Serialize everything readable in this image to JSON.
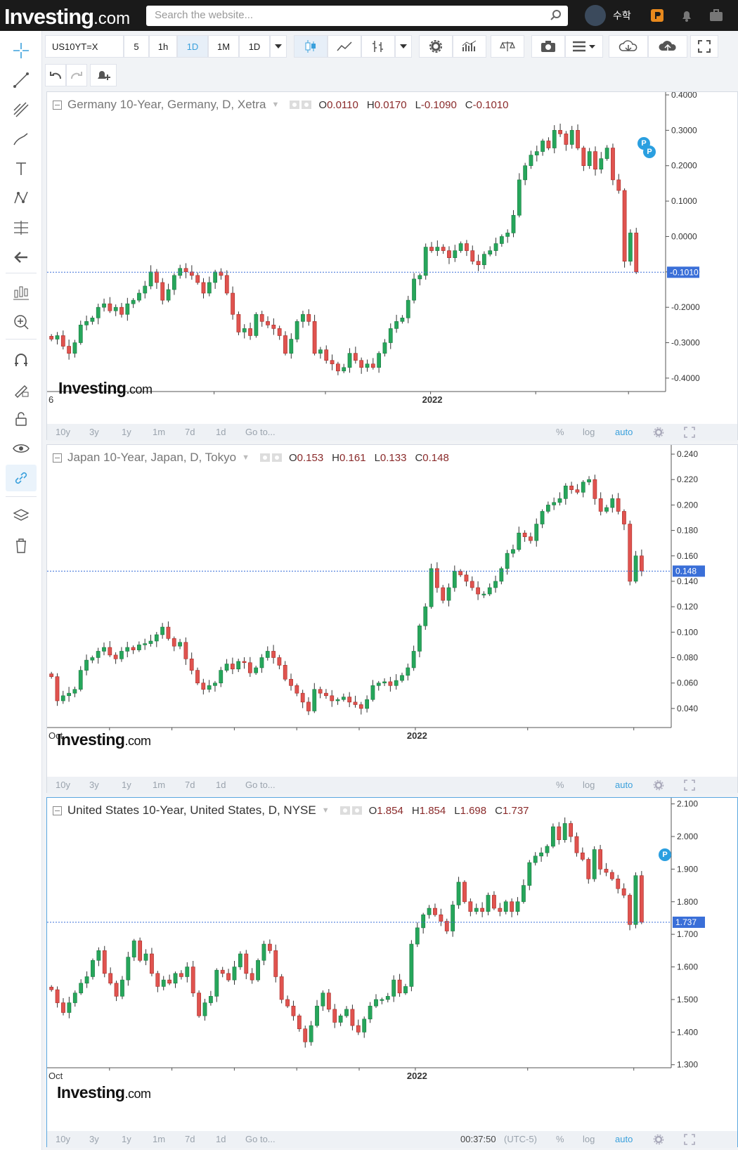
{
  "header": {
    "logo_main": "Investing",
    "logo_suffix": ".com",
    "search_placeholder": "Search the website...",
    "username": "수학"
  },
  "toolbar": {
    "symbol": "US10YT=X",
    "intervals": [
      "5",
      "1h",
      "1D",
      "1M",
      "1D"
    ],
    "active_interval": "1D"
  },
  "panels": [
    {
      "title": "Germany 10-Year, Germany, D, Xetra",
      "ohlc": {
        "O": "0.0110",
        "H": "0.0170",
        "L": "-0.1090",
        "C": "-0.1010"
      },
      "yticks": [
        "0.4000",
        "0.3000",
        "0.2000",
        "0.1000",
        "0.0000",
        "-0.1000",
        "-0.2000",
        "-0.3000",
        "-0.4000"
      ],
      "last_price": "-0.1010",
      "xlabels": [
        "6",
        "2022"
      ],
      "bottom": [
        "10y",
        "3y",
        "1y",
        "1m",
        "7d",
        "1d",
        "Go to...",
        "%",
        "log",
        "auto"
      ],
      "watermark_main": "Investing",
      "watermark_suffix": ".com"
    },
    {
      "title": "Japan 10-Year, Japan, D, Tokyo",
      "ohlc": {
        "O": "0.153",
        "H": "0.161",
        "L": "0.133",
        "C": "0.148"
      },
      "yticks": [
        "0.240",
        "0.220",
        "0.200",
        "0.180",
        "0.160",
        "0.140",
        "0.120",
        "0.100",
        "0.080",
        "0.060",
        "0.040"
      ],
      "last_price": "0.148",
      "xlabels": [
        "Oct",
        "2022"
      ],
      "bottom": [
        "10y",
        "3y",
        "1y",
        "1m",
        "7d",
        "1d",
        "Go to...",
        "%",
        "log",
        "auto"
      ],
      "watermark_main": "Investing",
      "watermark_suffix": ".com"
    },
    {
      "title": "United States 10-Year, United States, D, NYSE",
      "ohlc": {
        "O": "1.854",
        "H": "1.854",
        "L": "1.698",
        "C": "1.737"
      },
      "yticks": [
        "2.100",
        "2.000",
        "1.900",
        "1.800",
        "1.700",
        "1.600",
        "1.500",
        "1.400",
        "1.300"
      ],
      "last_price": "1.737",
      "xlabels": [
        "Oct",
        "2022"
      ],
      "bottom": [
        "10y",
        "3y",
        "1y",
        "1m",
        "7d",
        "1d",
        "Go to...",
        "00:37:50",
        "(UTC-5)",
        "%",
        "log",
        "auto"
      ],
      "watermark_main": "Investing",
      "watermark_suffix": ".com"
    }
  ],
  "chart_data": [
    {
      "type": "candlestick",
      "title": "Germany 10-Year, Germany, D, Xetra",
      "ylim": [
        -0.43,
        0.4
      ],
      "x_start": "Sep 2021",
      "x_end": "Mar 2022",
      "closes": [
        -0.29,
        -0.28,
        -0.31,
        -0.33,
        -0.3,
        -0.25,
        -0.24,
        -0.23,
        -0.2,
        -0.19,
        -0.21,
        -0.2,
        -0.22,
        -0.19,
        -0.18,
        -0.16,
        -0.14,
        -0.1,
        -0.13,
        -0.18,
        -0.15,
        -0.11,
        -0.09,
        -0.1,
        -0.11,
        -0.13,
        -0.16,
        -0.13,
        -0.1,
        -0.11,
        -0.16,
        -0.22,
        -0.27,
        -0.26,
        -0.28,
        -0.22,
        -0.24,
        -0.25,
        -0.26,
        -0.28,
        -0.33,
        -0.29,
        -0.24,
        -0.22,
        -0.24,
        -0.33,
        -0.32,
        -0.35,
        -0.36,
        -0.38,
        -0.37,
        -0.33,
        -0.35,
        -0.37,
        -0.36,
        -0.37,
        -0.33,
        -0.3,
        -0.26,
        -0.24,
        -0.23,
        -0.18,
        -0.12,
        -0.11,
        -0.03,
        -0.04,
        -0.03,
        -0.04,
        -0.06,
        -0.04,
        -0.02,
        -0.04,
        -0.07,
        -0.08,
        -0.05,
        -0.04,
        -0.02,
        0.0,
        0.01,
        0.06,
        0.16,
        0.2,
        0.23,
        0.24,
        0.27,
        0.25,
        0.3,
        0.29,
        0.26,
        0.3,
        0.25,
        0.2,
        0.24,
        0.19,
        0.22,
        0.25,
        0.16,
        0.13,
        -0.07,
        0.01,
        -0.1
      ]
    },
    {
      "type": "candlestick",
      "title": "Japan 10-Year, Japan, D, Tokyo",
      "ylim": [
        0.025,
        0.245
      ],
      "x_start": "Oct 2021",
      "x_end": "Mar 2022",
      "closes": [
        0.065,
        0.046,
        0.05,
        0.052,
        0.055,
        0.07,
        0.078,
        0.08,
        0.085,
        0.088,
        0.082,
        0.079,
        0.085,
        0.088,
        0.086,
        0.09,
        0.091,
        0.093,
        0.098,
        0.104,
        0.095,
        0.089,
        0.092,
        0.079,
        0.07,
        0.06,
        0.055,
        0.058,
        0.06,
        0.07,
        0.075,
        0.071,
        0.077,
        0.076,
        0.068,
        0.072,
        0.08,
        0.085,
        0.08,
        0.074,
        0.063,
        0.058,
        0.052,
        0.045,
        0.038,
        0.055,
        0.052,
        0.05,
        0.046,
        0.047,
        0.049,
        0.045,
        0.043,
        0.04,
        0.047,
        0.058,
        0.06,
        0.061,
        0.058,
        0.062,
        0.066,
        0.072,
        0.085,
        0.105,
        0.12,
        0.15,
        0.135,
        0.125,
        0.135,
        0.148,
        0.145,
        0.14,
        0.135,
        0.13,
        0.13,
        0.135,
        0.14,
        0.15,
        0.162,
        0.165,
        0.178,
        0.175,
        0.172,
        0.185,
        0.195,
        0.2,
        0.202,
        0.205,
        0.215,
        0.212,
        0.21,
        0.218,
        0.22,
        0.205,
        0.195,
        0.198,
        0.205,
        0.195,
        0.185,
        0.14,
        0.16,
        0.148
      ]
    },
    {
      "type": "candlestick",
      "title": "United States 10-Year, United States, D, NYSE",
      "ylim": [
        1.295,
        2.11
      ],
      "x_start": "Sep 2021",
      "x_end": "Mar 2022",
      "closes": [
        1.53,
        1.49,
        1.46,
        1.49,
        1.52,
        1.55,
        1.57,
        1.62,
        1.65,
        1.58,
        1.55,
        1.51,
        1.56,
        1.63,
        1.68,
        1.62,
        1.64,
        1.58,
        1.54,
        1.56,
        1.55,
        1.58,
        1.57,
        1.6,
        1.52,
        1.45,
        1.49,
        1.51,
        1.59,
        1.58,
        1.56,
        1.6,
        1.64,
        1.58,
        1.56,
        1.62,
        1.67,
        1.65,
        1.57,
        1.5,
        1.48,
        1.45,
        1.41,
        1.37,
        1.42,
        1.48,
        1.52,
        1.47,
        1.43,
        1.45,
        1.47,
        1.42,
        1.4,
        1.44,
        1.48,
        1.5,
        1.5,
        1.51,
        1.56,
        1.52,
        1.54,
        1.67,
        1.72,
        1.76,
        1.78,
        1.76,
        1.74,
        1.71,
        1.79,
        1.86,
        1.8,
        1.77,
        1.78,
        1.77,
        1.82,
        1.78,
        1.77,
        1.8,
        1.77,
        1.8,
        1.85,
        1.92,
        1.94,
        1.95,
        1.97,
        2.03,
        1.99,
        2.04,
        2.0,
        1.95,
        1.93,
        1.87,
        1.96,
        1.9,
        1.89,
        1.87,
        1.84,
        1.82,
        1.73,
        1.88,
        1.737
      ],
      "last_close": 1.737
    }
  ]
}
